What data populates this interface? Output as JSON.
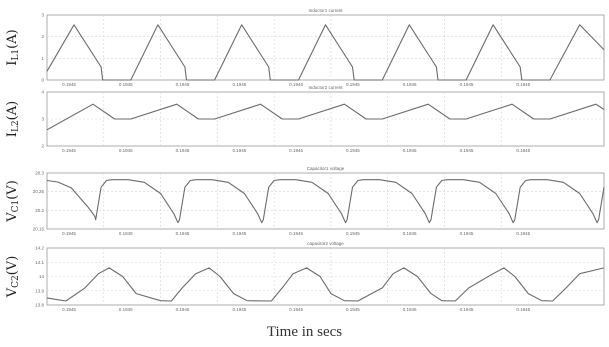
{
  "chart_data": {
    "xlabel": "Time in secs",
    "x_tick_labels": [
      "0.1945",
      "0.1945",
      "0.1945",
      "0.1945",
      "0.1945",
      "0.1945",
      "0.1945",
      "0.1945",
      "0.1945"
    ],
    "trace_color": "#6b6b6b",
    "grid": true,
    "charts": [
      {
        "id": "p1",
        "type": "line",
        "title": "Inductor1 current",
        "ylabel_main": "I",
        "ylabel_sub": "L1",
        "ylabel_unit": "(A)",
        "ylim": [
          0,
          3
        ],
        "yticks": [
          "0",
          "1",
          "2",
          "3"
        ],
        "series": [
          {
            "x": [
              0,
              0.5,
              1.0,
              1.03,
              1.55,
              2.05,
              2.55,
              2.58,
              3.1,
              3.6,
              4.1,
              4.13,
              4.65,
              5.15,
              5.65,
              5.68,
              6.2,
              6.7,
              7.2,
              7.23,
              7.75,
              8.25,
              8.75,
              8.78,
              9.3,
              9.85,
              10.3
            ],
            "y": [
              0.4,
              2.55,
              0.6,
              0,
              0,
              2.55,
              0.6,
              0,
              0,
              2.55,
              0.6,
              0,
              0,
              2.55,
              0.6,
              0,
              0,
              2.55,
              0.6,
              0,
              0,
              2.55,
              0.6,
              0,
              0,
              2.55,
              1.4
            ]
          }
        ]
      },
      {
        "id": "p2",
        "type": "line",
        "title": "Inductor2 current",
        "ylabel_main": "I",
        "ylabel_sub": "L2",
        "ylabel_unit": "(A)",
        "ylim": [
          2,
          4
        ],
        "yticks": [
          "2",
          "3",
          "4"
        ],
        "series": [
          {
            "x": [
              0,
              0.85,
              1.25,
              1.55,
              2.4,
              2.8,
              3.1,
              3.95,
              4.35,
              4.65,
              5.5,
              5.9,
              6.2,
              7.05,
              7.45,
              7.75,
              8.6,
              9.0,
              9.3,
              10.15,
              10.3
            ],
            "y": [
              2.6,
              3.55,
              3.0,
              3.0,
              3.55,
              3.0,
              3.0,
              3.55,
              3.0,
              3.0,
              3.55,
              3.0,
              3.0,
              3.55,
              3.0,
              3.0,
              3.55,
              3.0,
              3.0,
              3.55,
              3.35
            ]
          }
        ]
      },
      {
        "id": "p3",
        "type": "line",
        "title": "Capacitor1 voltage",
        "ylabel_main": "V",
        "ylabel_sub": "C1",
        "ylabel_unit": "(V)",
        "ylim": [
          20.15,
          20.3
        ],
        "yticks": [
          "20.15",
          "20.2",
          "20.25",
          "20.3"
        ],
        "series": [
          {
            "x": [
              0,
              0.2,
              0.45,
              0.75,
              0.88,
              0.9,
              1.0,
              1.1,
              1.2,
              1.5,
              1.8,
              2.1,
              2.35,
              2.42,
              2.45,
              2.55,
              2.65,
              2.75,
              3.05,
              3.35,
              3.65,
              3.9,
              3.97,
              4.0,
              4.1,
              4.2,
              4.3,
              4.6,
              4.9,
              5.2,
              5.45,
              5.52,
              5.55,
              5.65,
              5.75,
              5.85,
              6.15,
              6.45,
              6.75,
              7.0,
              7.07,
              7.1,
              7.2,
              7.3,
              7.4,
              7.7,
              8.0,
              8.3,
              8.55,
              8.62,
              8.65,
              8.75,
              8.85,
              8.95,
              9.25,
              9.55,
              9.85,
              10.1,
              10.17,
              10.2,
              10.3
            ],
            "y": [
              20.28,
              20.276,
              20.26,
              20.21,
              20.185,
              20.175,
              20.262,
              20.28,
              20.282,
              20.282,
              20.275,
              20.245,
              20.19,
              20.167,
              20.175,
              20.262,
              20.28,
              20.282,
              20.282,
              20.275,
              20.245,
              20.19,
              20.167,
              20.175,
              20.262,
              20.28,
              20.282,
              20.282,
              20.275,
              20.245,
              20.19,
              20.167,
              20.175,
              20.262,
              20.28,
              20.282,
              20.282,
              20.275,
              20.245,
              20.19,
              20.167,
              20.175,
              20.262,
              20.28,
              20.282,
              20.282,
              20.275,
              20.245,
              20.19,
              20.167,
              20.175,
              20.262,
              20.28,
              20.282,
              20.282,
              20.275,
              20.245,
              20.19,
              20.167,
              20.175,
              20.262
            ]
          }
        ]
      },
      {
        "id": "p4",
        "type": "line",
        "title": "capacitor2 voltage",
        "ylabel_main": "V",
        "ylabel_sub": "C2",
        "ylabel_unit": "(V)",
        "ylim": [
          13.8,
          14.2
        ],
        "yticks": [
          "13.8",
          "13.9",
          "14",
          "14.1",
          "14.2"
        ],
        "series": [
          {
            "x": [
              0,
              0.15,
              0.35,
              0.7,
              0.95,
              1.15,
              1.4,
              1.65,
              2.1,
              2.3,
              2.5,
              2.75,
              3.0,
              3.2,
              3.45,
              3.7,
              4.15,
              4.35,
              4.55,
              4.8,
              5.05,
              5.25,
              5.5,
              5.75,
              6.2,
              6.4,
              6.6,
              6.85,
              7.1,
              7.3,
              7.55,
              7.8,
              8.25,
              8.45,
              8.65,
              8.9,
              9.15,
              9.35,
              9.6,
              9.85,
              10.3
            ],
            "y": [
              13.85,
              13.84,
              13.828,
              13.92,
              14.02,
              14.06,
              14.0,
              13.88,
              13.83,
              13.828,
              13.92,
              14.02,
              14.06,
              14.0,
              13.88,
              13.83,
              13.828,
              13.92,
              14.02,
              14.06,
              14.0,
              13.88,
              13.83,
              13.828,
              13.92,
              14.02,
              14.06,
              14.0,
              13.88,
              13.83,
              13.828,
              13.92,
              14.02,
              14.06,
              14.0,
              13.88,
              13.83,
              13.828,
              13.92,
              14.02,
              14.06
            ]
          }
        ]
      }
    ]
  }
}
